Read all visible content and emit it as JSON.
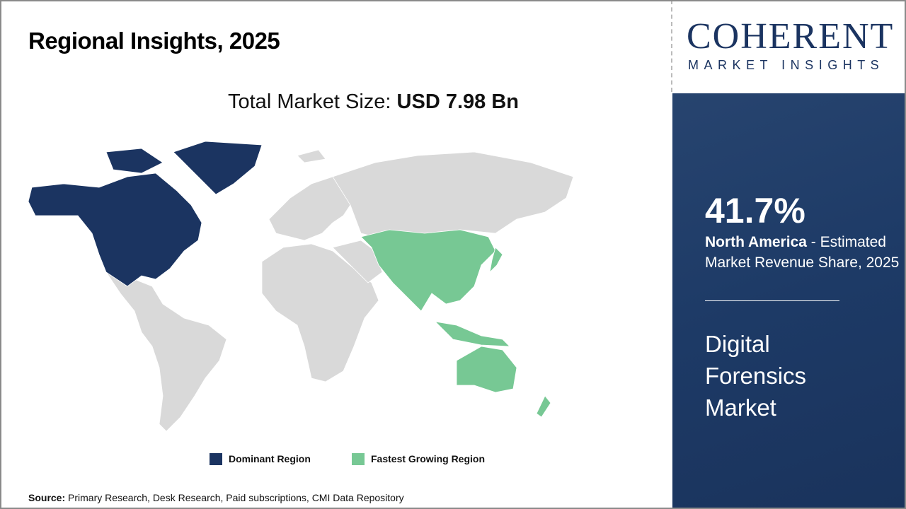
{
  "header": {
    "title": "Regional Insights, 2025",
    "total_label": "Total Market Size:",
    "total_value": "USD 7.98 Bn"
  },
  "logo": {
    "name": "COHERENT",
    "tagline": "MARKET INSIGHTS"
  },
  "panel": {
    "share": "41.7%",
    "region": "North America",
    "desc": " - Estimated Market Revenue Share, 2025",
    "market": "Digital Forensics Market"
  },
  "legend": [
    {
      "label": "Dominant Region",
      "color": "#1b3461"
    },
    {
      "label": "Fastest Growing Region",
      "color": "#77c894"
    }
  ],
  "source": {
    "label": "Source:",
    "text": " Primary Research, Desk Research, Paid subscriptions, CMI Data Repository"
  },
  "colors": {
    "dominant": "#1b3461",
    "fastest": "#77c894",
    "other": "#d9d9d9"
  }
}
